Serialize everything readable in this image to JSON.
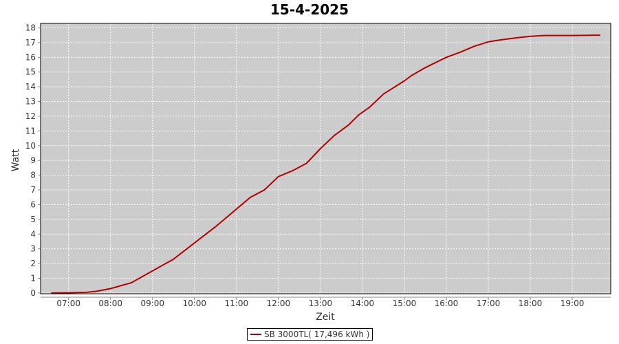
{
  "chart_data": {
    "type": "line",
    "title": "15-4-2025",
    "xlabel": "Zeit",
    "ylabel": "Watt",
    "xlim": [
      "06:20",
      "19:55"
    ],
    "ylim": [
      -0.05,
      18.3
    ],
    "x_ticks": [
      "07:00",
      "08:00",
      "09:00",
      "10:00",
      "11:00",
      "12:00",
      "13:00",
      "14:00",
      "15:00",
      "16:00",
      "17:00",
      "18:00",
      "19:00"
    ],
    "y_ticks": [
      0,
      1,
      2,
      3,
      4,
      5,
      6,
      7,
      8,
      9,
      10,
      11,
      12,
      13,
      14,
      15,
      16,
      17,
      18
    ],
    "grid": true,
    "legend_position": "bottom",
    "series": [
      {
        "name": "SB 3000TL( 17,496 kWh )",
        "color": "#b00000",
        "x": [
          "06:35",
          "07:00",
          "07:25",
          "07:40",
          "08:00",
          "08:30",
          "09:00",
          "09:30",
          "10:00",
          "10:30",
          "11:00",
          "11:20",
          "11:40",
          "12:00",
          "12:20",
          "12:40",
          "13:00",
          "13:20",
          "13:40",
          "13:55",
          "14:10",
          "14:30",
          "15:00",
          "15:10",
          "15:30",
          "16:00",
          "16:20",
          "16:40",
          "17:00",
          "17:20",
          "17:40",
          "18:00",
          "18:20",
          "19:00",
          "19:35",
          "19:40"
        ],
        "values": [
          0,
          0.02,
          0.05,
          0.12,
          0.3,
          0.7,
          1.5,
          2.3,
          3.4,
          4.5,
          5.7,
          6.5,
          7.0,
          7.9,
          8.3,
          8.8,
          9.8,
          10.7,
          11.4,
          12.1,
          12.6,
          13.5,
          14.4,
          14.75,
          15.3,
          16.0,
          16.35,
          16.75,
          17.05,
          17.2,
          17.32,
          17.42,
          17.48,
          17.48,
          17.5,
          17.5
        ]
      }
    ]
  },
  "colors": {
    "plot_background": "#cccccc",
    "grid": "#ffffff",
    "series": "#b00000"
  }
}
